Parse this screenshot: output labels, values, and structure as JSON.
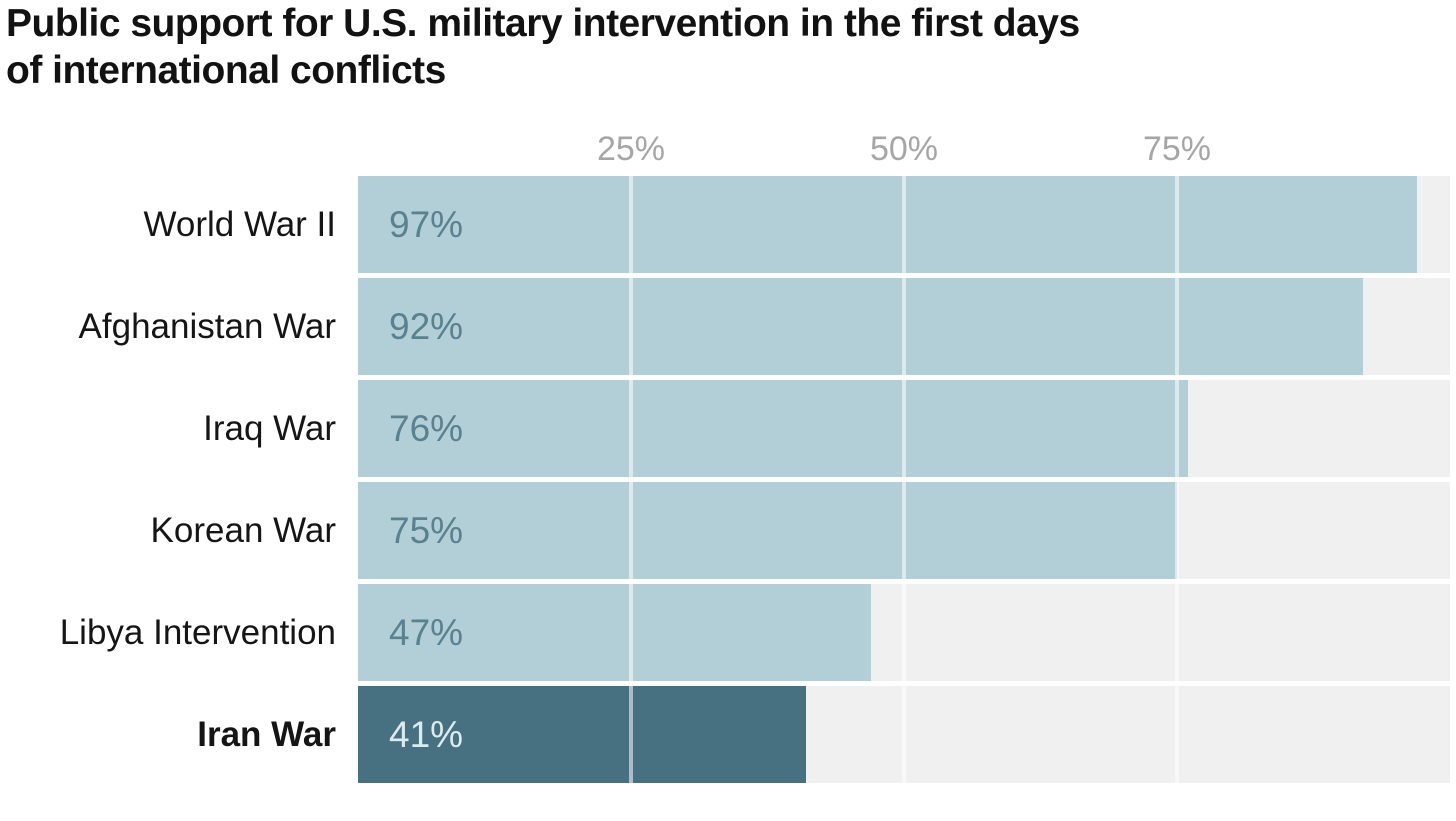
{
  "title": {
    "line1": "Public support for U.S. military intervention in the first days",
    "line2": "of international conflicts"
  },
  "chart_data": {
    "type": "bar",
    "orientation": "horizontal",
    "title": "Public support for U.S. military intervention in the first days of international conflicts",
    "categories": [
      "World War II",
      "Afghanistan War",
      "Iraq War",
      "Korean War",
      "Libya Intervention",
      "Iran War"
    ],
    "values": [
      97,
      92,
      76,
      75,
      47,
      41
    ],
    "value_labels": [
      "97%",
      "92%",
      "76%",
      "75%",
      "47%",
      "41%"
    ],
    "highlight_index": 5,
    "xlim": [
      0,
      100
    ],
    "x_ticks": [
      {
        "label": "25%",
        "value": 25
      },
      {
        "label": "50%",
        "value": 50
      },
      {
        "label": "75%",
        "value": 75
      }
    ],
    "grid": true,
    "legend": false,
    "xlabel": "",
    "ylabel": ""
  },
  "colors": {
    "bar": "#b2cfd8",
    "bar_highlight": "#477080",
    "value_label": "#59818f",
    "value_label_highlight": "#dcebf0",
    "track": "#f0f0f0",
    "tick_label": "#a6a6a6",
    "title_text": "#121212",
    "category_label": "#151515",
    "gridline": "rgba(255,255,255,0.55)"
  }
}
